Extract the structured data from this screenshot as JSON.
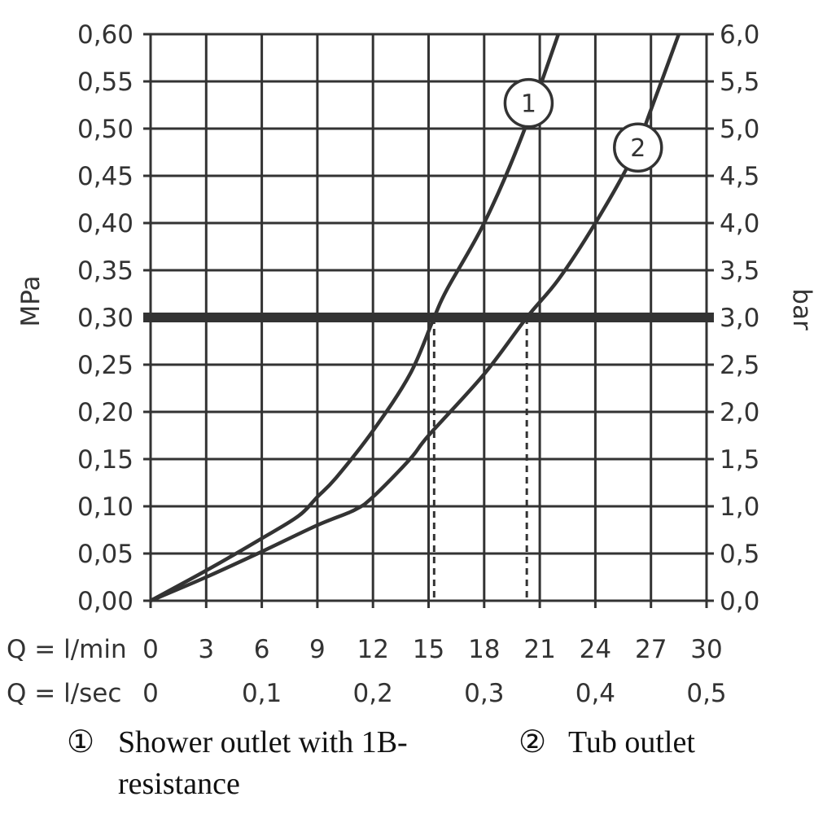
{
  "chart_data": {
    "type": "line",
    "y_left": {
      "label": "MPa",
      "min": 0,
      "max": 0.6,
      "step": 0.05,
      "tick_labels": [
        "0,00",
        "0,05",
        "0,10",
        "0,15",
        "0,20",
        "0,25",
        "0,30",
        "0,35",
        "0,40",
        "0,45",
        "0,50",
        "0,55",
        "0,60"
      ]
    },
    "y_right": {
      "label": "bar",
      "tick_labels": [
        "0,0",
        "0,5",
        "1,0",
        "1,5",
        "2,0",
        "2,5",
        "3,0",
        "3,5",
        "4,0",
        "4,5",
        "5,0",
        "5,5",
        "6,0"
      ]
    },
    "x_axis": {
      "min": 0,
      "max": 30,
      "step": 3,
      "row_lmin_label": "Q = l/min",
      "lmin_ticks": [
        "0",
        "3",
        "6",
        "9",
        "12",
        "15",
        "18",
        "21",
        "24",
        "27",
        "30"
      ],
      "row_lsec_label": "Q = l/sec",
      "lsec_ticks": [
        {
          "x": 0,
          "label": "0"
        },
        {
          "x": 6,
          "label": "0,1"
        },
        {
          "x": 12,
          "label": "0,2"
        },
        {
          "x": 18,
          "label": "0,3"
        },
        {
          "x": 24,
          "label": "0,4"
        },
        {
          "x": 30,
          "label": "0,5"
        }
      ]
    },
    "grid": true,
    "reference_line": {
      "y": 0.3
    },
    "drop_lines": [
      {
        "x": 15.3,
        "y": 0.3
      },
      {
        "x": 20.3,
        "y": 0.3
      }
    ],
    "series": [
      {
        "marker": "1",
        "x": [
          0,
          3,
          6,
          8,
          9,
          10,
          12,
          14,
          15.3,
          16,
          18,
          20,
          22
        ],
        "y": [
          0,
          0.032,
          0.066,
          0.09,
          0.11,
          0.13,
          0.18,
          0.24,
          0.3,
          0.33,
          0.4,
          0.49,
          0.6
        ],
        "marker_at": {
          "x": 20.4,
          "y": 0.527
        }
      },
      {
        "marker": "2",
        "x": [
          0,
          3,
          6,
          9,
          11,
          12,
          14,
          15,
          18,
          20.3,
          22,
          24,
          26,
          27,
          28.5
        ],
        "y": [
          0,
          0.025,
          0.052,
          0.08,
          0.096,
          0.11,
          0.15,
          0.175,
          0.24,
          0.3,
          0.34,
          0.4,
          0.47,
          0.52,
          0.6
        ],
        "marker_at": {
          "x": 26.3,
          "y": 0.48
        }
      }
    ],
    "legend": [
      {
        "symbol": "①",
        "text_lines": [
          "Shower outlet with 1B-",
          "resistance"
        ]
      },
      {
        "symbol": "②",
        "text_lines": [
          "Tub outlet"
        ]
      }
    ],
    "colors": {
      "line": "#333333",
      "grid": "#333333",
      "text": "#333333"
    }
  }
}
